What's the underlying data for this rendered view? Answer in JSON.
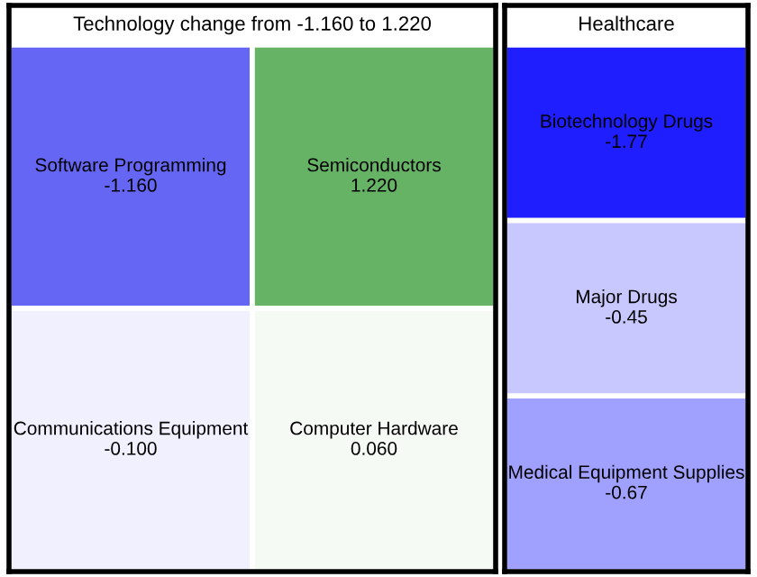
{
  "chart_data": [
    {
      "type": "other",
      "title": "Technology change from -1.160 to 1.220",
      "categories": [
        "Software Programming",
        "Semiconductors",
        "Communications Equipment",
        "Computer Hardware"
      ],
      "values": [
        -1.16,
        1.22,
        -0.1,
        0.06
      ],
      "value_labels": [
        "-1.160",
        "1.220",
        "-0.100",
        "0.060"
      ],
      "colors": [
        "#6666f5",
        "#66b366",
        "#f0f0ff",
        "#f5faf5"
      ]
    },
    {
      "type": "other",
      "title": "Healthcare",
      "categories": [
        "Biotechnology Drugs",
        "Major Drugs",
        "Medical Equipment Supplies"
      ],
      "values": [
        -1.77,
        -0.45,
        -0.67
      ],
      "value_labels": [
        "-1.77",
        "-0.45",
        "-0.67"
      ],
      "colors": [
        "#1e1eff",
        "#c8c8ff",
        "#a0a0ff"
      ]
    }
  ]
}
